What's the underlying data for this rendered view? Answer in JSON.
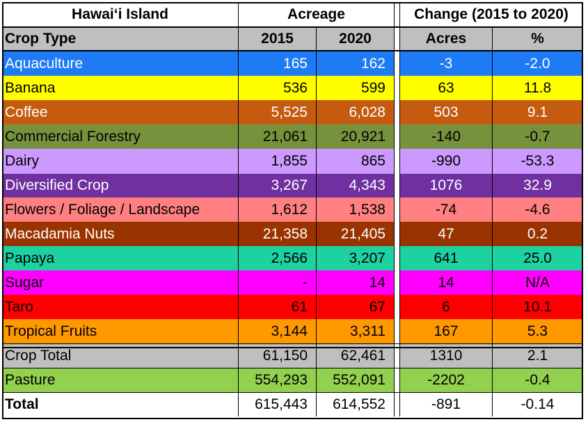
{
  "header": {
    "island": "Hawaiʻi Island",
    "acreage": "Acreage",
    "change": "Change (2015 to 2020)",
    "crop_type": "Crop Type",
    "y2015": "2015",
    "y2020": "2020",
    "acres": "Acres",
    "pct": "%"
  },
  "rows": [
    {
      "name": "Aquaculture",
      "v2015": "165",
      "v2020": "162",
      "acres": "-3",
      "pct": "-2.0",
      "bg": "#1f7af5",
      "fg": "#ffffff"
    },
    {
      "name": "Banana",
      "v2015": "536",
      "v2020": "599",
      "acres": "63",
      "pct": "11.8",
      "bg": "#ffff00",
      "fg": "#000000"
    },
    {
      "name": "Coffee",
      "v2015": "5,525",
      "v2020": "6,028",
      "acres": "503",
      "pct": "9.1",
      "bg": "#c55a11",
      "fg": "#ffffff"
    },
    {
      "name": "Commercial Forestry",
      "v2015": "21,061",
      "v2020": "20,921",
      "acres": "-140",
      "pct": "-0.7",
      "bg": "#76923c",
      "fg": "#000000"
    },
    {
      "name": "Dairy",
      "v2015": "1,855",
      "v2020": "865",
      "acres": "-990",
      "pct": "-53.3",
      "bg": "#cc99ff",
      "fg": "#000000"
    },
    {
      "name": "Diversified Crop",
      "v2015": "3,267",
      "v2020": "4,343",
      "acres": "1076",
      "pct": "32.9",
      "bg": "#7030a0",
      "fg": "#ffffff"
    },
    {
      "name": "Flowers / Foliage / Landscape",
      "v2015": "1,612",
      "v2020": "1,538",
      "acres": "-74",
      "pct": "-4.6",
      "bg": "#ff8080",
      "fg": "#000000"
    },
    {
      "name": "Macadamia Nuts",
      "v2015": "21,358",
      "v2020": "21,405",
      "acres": "47",
      "pct": "0.2",
      "bg": "#993300",
      "fg": "#ffffff"
    },
    {
      "name": "Papaya",
      "v2015": "2,566",
      "v2020": "3,207",
      "acres": "641",
      "pct": "25.0",
      "bg": "#1dd1a1",
      "fg": "#000000"
    },
    {
      "name": "Sugar",
      "v2015": "-",
      "v2020": "14",
      "acres": "14",
      "pct": "N/A",
      "bg": "#ff00ff",
      "fg": "#000000"
    },
    {
      "name": "Taro",
      "v2015": "61",
      "v2020": "67",
      "acres": "6",
      "pct": "10.1",
      "bg": "#ff0000",
      "fg": "#000000"
    },
    {
      "name": "Tropical Fruits",
      "v2015": "3,144",
      "v2020": "3,311",
      "acres": "167",
      "pct": "5.3",
      "bg": "#ff9900",
      "fg": "#000000"
    },
    {
      "name": "Crop Total",
      "v2015": "61,150",
      "v2020": "62,461",
      "acres": "1310",
      "pct": "2.1",
      "bg": "#bfbfbf",
      "fg": "#000000"
    },
    {
      "name": "Pasture",
      "v2015": "554,293",
      "v2020": "552,091",
      "acres": "-2202",
      "pct": "-0.4",
      "bg": "#92d050",
      "fg": "#000000"
    },
    {
      "name": "Total",
      "v2015": "615,443",
      "v2020": "614,552",
      "acres": "-891",
      "pct": "-0.14",
      "bg": "#ffffff",
      "fg": "#000000",
      "bold": true
    }
  ]
}
